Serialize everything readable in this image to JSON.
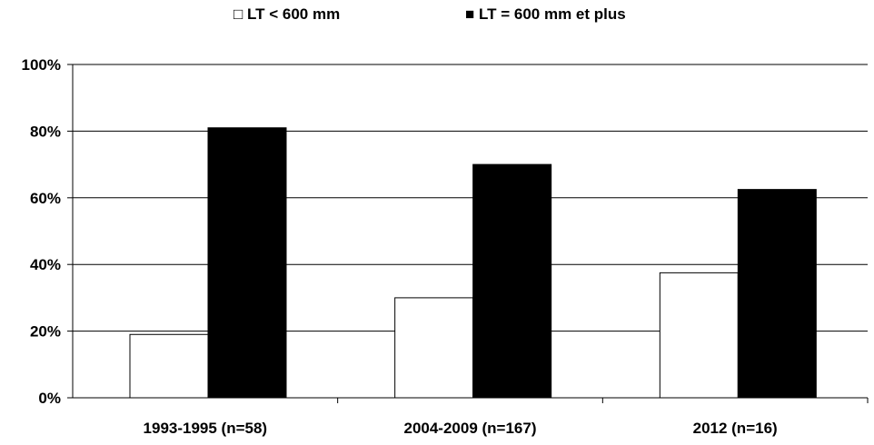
{
  "chart_data": {
    "type": "bar",
    "categories": [
      "1993-1995 (n=58)",
      "2004-2009 (n=167)",
      "2012 (n=16)"
    ],
    "series": [
      {
        "name": "LT < 600 mm",
        "values": [
          19,
          30,
          37.5
        ],
        "color": "#ffffff",
        "legend_symbol": "□"
      },
      {
        "name": "LT = 600 mm et plus",
        "values": [
          81,
          70,
          62.5
        ],
        "color": "#000000",
        "legend_symbol": "■"
      }
    ],
    "y_ticks": [
      0,
      20,
      40,
      60,
      80,
      100
    ],
    "y_tick_labels": [
      "0%",
      "20%",
      "40%",
      "60%",
      "80%",
      "100%"
    ],
    "ylim": [
      0,
      100
    ],
    "grid": true,
    "legend_position": "top-center",
    "title": "",
    "xlabel": "",
    "ylabel": ""
  }
}
